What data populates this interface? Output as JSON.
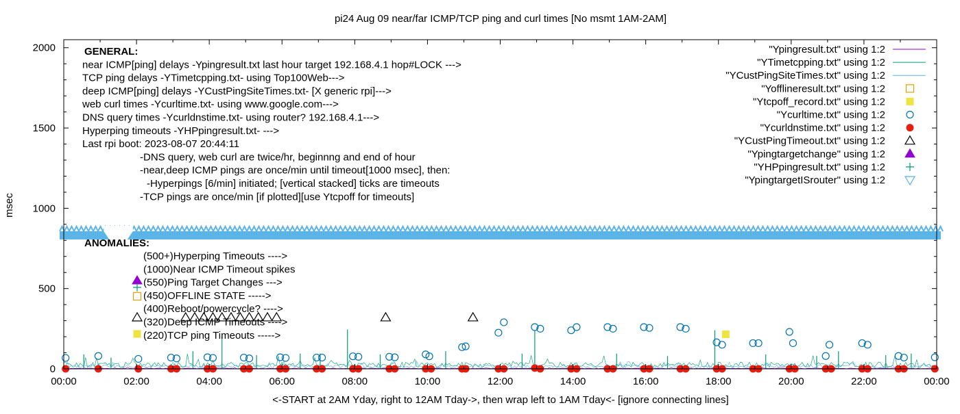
{
  "chart_data": {
    "type": "scatter",
    "title": "pi24 Aug 09  near/far ICMP/TCP ping and curl times [No msmt 1AM-2AM]",
    "xlabel": "<-START at 2AM Yday, right to 12AM Tday->, then wrap left to 1AM Tday<- [ignore connecting lines]",
    "ylabel": "msec",
    "xlim": [
      0,
      24
    ],
    "ylim": [
      0,
      2050
    ],
    "x_ticks": [
      "00:00",
      "02:00",
      "04:00",
      "06:00",
      "08:00",
      "10:00",
      "12:00",
      "14:00",
      "16:00",
      "18:00",
      "20:00",
      "22:00",
      "00:00"
    ],
    "y_ticks": [
      "0",
      "500",
      "1000",
      "1500",
      "2000"
    ],
    "grid": false,
    "legend_position": "top-right",
    "general_notes": [
      "GENERAL:",
      "near ICMP[ping] delays -Ypingresult.txt last hour target 192.168.4.1 hop#LOCK --->",
      "TCP ping delays -YTimetcpping.txt- using Top100Web--->",
      "deep ICMP[ping] delays -YCustPingSiteTimes.txt- [X generic rpi]--->",
      "web curl times -Ycurltime.txt- using www.google.com--->",
      "DNS query times -Ycurldnstime.txt- using router? 192.168.4.1--->",
      "Hyperping timeouts -YHPpingresult.txt- --->",
      "Last rpi boot: 2023-08-07 20:44:11",
      "-DNS query, web curl are twice/hr, beginnng and end of hour",
      "-near,deep ICMP pings are once/min until timeout[1000 msec], then:",
      "-Hyperpings [6/min] initiated; [vertical stacked] ticks are timeouts",
      "-TCP pings are once/min [if plotted][use Ytcpoff for timeouts]"
    ],
    "anomalies_title": "ANOMALIES:",
    "anomalies": [
      "(500+)Hyperping Timeouts ---->",
      "(1000)Near ICMP Timeout spikes",
      "(550)Ping Target Changes --->",
      "(450)OFFLINE STATE ----->",
      "(400)Reboot/powercycle? ---->",
      "(320)Deep ICMP Timeouts ---->",
      "(220)TCP ping Timeouts ----->"
    ],
    "band_y": 840,
    "series": [
      {
        "name": "\"Ypingresult.txt\" using 1:2",
        "style": "line",
        "color": "#9400d3",
        "base": 3,
        "spikes": []
      },
      {
        "name": "\"YTimetcpping.txt\" using 1:2",
        "style": "line",
        "color": "#009e73",
        "base": 25,
        "spikes": [
          [
            0.55,
            90
          ],
          [
            1.3,
            70
          ],
          [
            3.55,
            110
          ],
          [
            4.35,
            200
          ],
          [
            5.3,
            85
          ],
          [
            6.5,
            95
          ],
          [
            7.05,
            95
          ],
          [
            7.8,
            245
          ],
          [
            8.7,
            90
          ],
          [
            10.5,
            110
          ],
          [
            12.6,
            95
          ],
          [
            12.95,
            240
          ],
          [
            15.2,
            95
          ],
          [
            16.6,
            80
          ],
          [
            17.9,
            240
          ],
          [
            19.3,
            90
          ],
          [
            20.7,
            80
          ],
          [
            21.3,
            110
          ],
          [
            22.6,
            85
          ],
          [
            23.3,
            95
          ]
        ]
      },
      {
        "name": "\"YCustPingSiteTimes.txt\" using 1:2",
        "style": "line",
        "color": "#56b4e9",
        "base": 15,
        "spikes": []
      },
      {
        "name": "\"Yofflineresult.txt\" using 1:2",
        "style": "open-square",
        "color": "#e69f00",
        "points": []
      },
      {
        "name": "\"Ytcpoff_record.txt\" using 1:2",
        "style": "filled-square",
        "color": "#f0e442",
        "points": [
          [
            18.2,
            215
          ]
        ]
      },
      {
        "name": "\"Ycurltime.txt\" using 1:2",
        "style": "open-circle",
        "color": "#0072b2",
        "points": [
          [
            0.05,
            68
          ],
          [
            0.95,
            80
          ],
          [
            2.05,
            62
          ],
          [
            2.95,
            70
          ],
          [
            3.1,
            65
          ],
          [
            3.95,
            72
          ],
          [
            4.1,
            68
          ],
          [
            4.95,
            70
          ],
          [
            5.1,
            65
          ],
          [
            5.95,
            72
          ],
          [
            6.1,
            68
          ],
          [
            6.95,
            70
          ],
          [
            7.1,
            70
          ],
          [
            7.95,
            78
          ],
          [
            8.1,
            75
          ],
          [
            8.95,
            75
          ],
          [
            9.1,
            72
          ],
          [
            9.95,
            90
          ],
          [
            10.05,
            78
          ],
          [
            10.95,
            135
          ],
          [
            11.05,
            140
          ],
          [
            11.95,
            225
          ],
          [
            12.1,
            290
          ],
          [
            12.95,
            260
          ],
          [
            13.1,
            250
          ],
          [
            13.95,
            240
          ],
          [
            14.1,
            260
          ],
          [
            14.95,
            260
          ],
          [
            15.1,
            250
          ],
          [
            15.95,
            260
          ],
          [
            16.1,
            255
          ],
          [
            16.95,
            260
          ],
          [
            17.1,
            250
          ],
          [
            17.95,
            165
          ],
          [
            18.1,
            150
          ],
          [
            18.95,
            160
          ],
          [
            19.1,
            160
          ],
          [
            19.95,
            230
          ],
          [
            20.05,
            160
          ],
          [
            20.95,
            80
          ],
          [
            21.05,
            150
          ],
          [
            21.95,
            160
          ],
          [
            22.1,
            150
          ],
          [
            22.95,
            80
          ],
          [
            23.1,
            70
          ],
          [
            23.95,
            72
          ]
        ]
      },
      {
        "name": "\"Ycurldnstime.txt\" using 1:2",
        "style": "filled-circle",
        "color": "#e51e10",
        "points": [
          [
            0.05,
            0
          ],
          [
            0.95,
            0
          ],
          [
            2.05,
            0
          ],
          [
            2.95,
            0
          ],
          [
            3.1,
            0
          ],
          [
            3.95,
            0
          ],
          [
            4.1,
            0
          ],
          [
            4.95,
            0
          ],
          [
            5.1,
            0
          ],
          [
            5.95,
            0
          ],
          [
            6.1,
            0
          ],
          [
            6.95,
            0
          ],
          [
            7.1,
            0
          ],
          [
            7.95,
            0
          ],
          [
            8.1,
            0
          ],
          [
            8.95,
            0
          ],
          [
            9.1,
            0
          ],
          [
            9.95,
            0
          ],
          [
            10.1,
            0
          ],
          [
            10.95,
            0
          ],
          [
            11.05,
            0
          ],
          [
            11.95,
            0
          ],
          [
            12.1,
            0
          ],
          [
            12.95,
            5
          ],
          [
            13.1,
            0
          ],
          [
            13.95,
            0
          ],
          [
            14.1,
            0
          ],
          [
            14.95,
            0
          ],
          [
            15.1,
            0
          ],
          [
            15.95,
            0
          ],
          [
            16.1,
            0
          ],
          [
            16.95,
            0
          ],
          [
            17.1,
            0
          ],
          [
            17.95,
            0
          ],
          [
            18.1,
            0
          ],
          [
            18.95,
            0
          ],
          [
            19.1,
            0
          ],
          [
            19.95,
            0
          ],
          [
            20.1,
            0
          ],
          [
            20.95,
            0
          ],
          [
            21.1,
            0
          ],
          [
            21.95,
            0
          ],
          [
            22.1,
            0
          ],
          [
            22.95,
            0
          ],
          [
            23.1,
            0
          ],
          [
            23.95,
            0
          ]
        ]
      },
      {
        "name": "\"YCustPingTimeout.txt\" using 1:2",
        "style": "open-triangle",
        "color": "#000000",
        "points": [
          [
            3.35,
            320
          ],
          [
            3.6,
            320
          ],
          [
            3.85,
            320
          ],
          [
            4.1,
            320
          ],
          [
            4.35,
            320
          ],
          [
            4.6,
            320
          ],
          [
            4.85,
            320
          ],
          [
            5.1,
            320
          ],
          [
            5.35,
            320
          ],
          [
            5.6,
            320
          ],
          [
            5.85,
            320
          ],
          [
            8.85,
            320
          ],
          [
            11.25,
            320
          ]
        ]
      },
      {
        "name": "\"Ypingtargetchange\" using 1:2",
        "style": "filled-triangle",
        "color": "#9400d3",
        "points": []
      },
      {
        "name": "\"YHPpingresult.txt\" using 1:2",
        "style": "plus",
        "color": "#009e73",
        "points": []
      },
      {
        "name": "\"YpingtargetISrouter\" using 1:2",
        "style": "open-triangle-down",
        "color": "#56b4e9",
        "points": []
      }
    ]
  }
}
